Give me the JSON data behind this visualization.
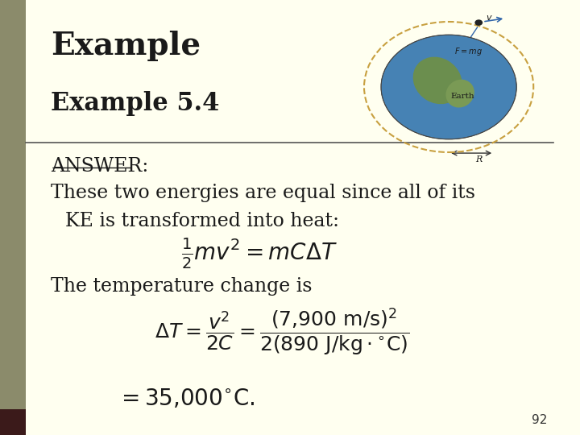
{
  "bg_color": "#FFFFF0",
  "left_bar_color": "#8B8B6B",
  "left_bar_dark": "#3B1A1A",
  "title_large": "Example",
  "title_small": "Example 5.4",
  "answer_label": "ANSWER:",
  "line1": "These two energies are equal since all of its",
  "line2": "KE is transformed into heat:",
  "eq1": "$\\frac{1}{2}mv^2 = mC\\Delta T$",
  "line3": "The temperature change is",
  "eq2": "$\\Delta T = \\dfrac{v^2}{2C} = \\dfrac{(7{,}900\\ \\mathrm{m/s})^2}{2(890\\ \\mathrm{J/kg\\cdot{}^{\\circ}C})}$",
  "eq3": "$= 35{,}000^{\\circ}\\mathrm{C}.$",
  "page_num": "92",
  "title_fontsize": 28,
  "subtitle_fontsize": 22,
  "body_fontsize": 17,
  "eq_fontsize": 18,
  "answer_fontsize": 17,
  "sep_line_color": "#555555",
  "text_color": "#1a1a1a",
  "earth_blue": "#4682B4",
  "earth_green1": "#6B8E4E",
  "earth_green2": "#7A9A55",
  "orbit_color": "#C8A040",
  "arrow_color": "#3366AA"
}
